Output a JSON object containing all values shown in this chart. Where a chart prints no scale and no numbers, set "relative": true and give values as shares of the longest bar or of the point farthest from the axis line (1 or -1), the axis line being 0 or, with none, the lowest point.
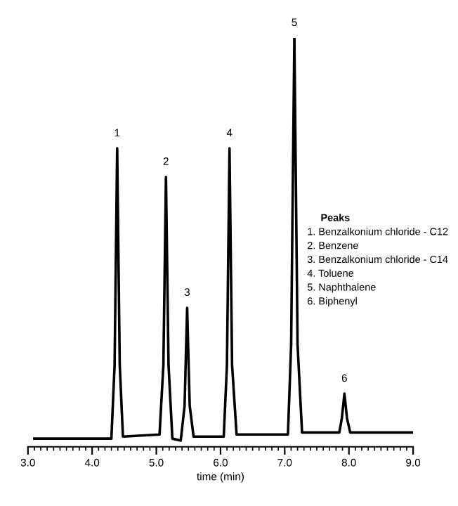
{
  "chart_data": {
    "type": "line",
    "relative": true,
    "color": "#000000",
    "xlabel": "time (min)",
    "xlim": [
      3.0,
      9.0
    ],
    "xticks": [
      {
        "value": 3.0,
        "label": "3.0"
      },
      {
        "value": 4.0,
        "label": "4.0"
      },
      {
        "value": 5.0,
        "label": "5.0"
      },
      {
        "value": 6.0,
        "label": "6.0"
      },
      {
        "value": 7.0,
        "label": "7.0"
      },
      {
        "value": 8.0,
        "label": "8.0"
      },
      {
        "value": 9.0,
        "label": "9.0"
      }
    ],
    "x": [
      3.1,
      4.3,
      4.35,
      4.39,
      4.43,
      4.48,
      5.05,
      5.11,
      5.15,
      5.19,
      5.25,
      5.38,
      5.44,
      5.48,
      5.52,
      5.58,
      6.05,
      6.1,
      6.14,
      6.18,
      6.25,
      7.05,
      7.1,
      7.15,
      7.2,
      7.27,
      7.85,
      7.89,
      7.93,
      7.97,
      8.02,
      9.0
    ],
    "values": [
      0.02,
      0.02,
      0.2,
      0.73,
      0.2,
      0.025,
      0.03,
      0.2,
      0.66,
      0.2,
      0.02,
      0.015,
      0.1,
      0.34,
      0.1,
      0.025,
      0.025,
      0.2,
      0.73,
      0.2,
      0.03,
      0.03,
      0.25,
      1,
      0.25,
      0.035,
      0.035,
      0.07,
      0.13,
      0.07,
      0.035,
      0.035
    ],
    "annotations": [
      {
        "text": "1",
        "x": 4.39,
        "y": 0.73
      },
      {
        "text": "2",
        "x": 5.15,
        "y": 0.66
      },
      {
        "text": "3",
        "x": 5.48,
        "y": 0.34
      },
      {
        "text": "4",
        "x": 6.14,
        "y": 0.73
      },
      {
        "text": "5",
        "x": 7.15,
        "y": 1
      },
      {
        "text": "6",
        "x": 7.93,
        "y": 0.13
      },
      "Peaks",
      "1. Benzalkonium chloride - C12",
      "2. Benzene",
      "3. Benzalkonium chloride - C14",
      "4. Toluene",
      "5. Naphthalene",
      "6. Biphenyl"
    ]
  }
}
